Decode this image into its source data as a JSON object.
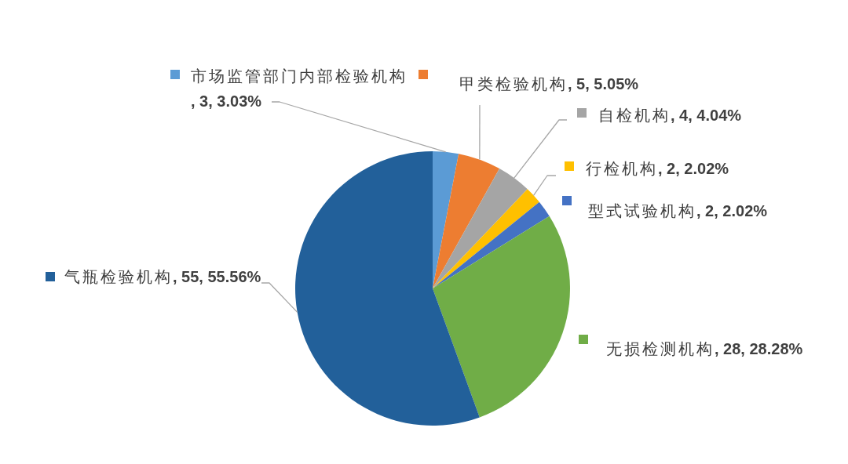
{
  "chart_data": {
    "type": "pie",
    "categories": [
      "市场监管部门内部检验机构",
      "甲类检验机构",
      "自检机构",
      "行检机构",
      "型式试验机构",
      "无损检测机构",
      "气瓶检验机构"
    ],
    "values": [
      3,
      5,
      4,
      2,
      2,
      28,
      55
    ],
    "colors": [
      "#5b9bd5",
      "#ed7d31",
      "#a5a5a5",
      "#ffc000",
      "#4472c4",
      "#70ad47",
      "#22609a"
    ],
    "value_labels": [
      ", 3, 3.03%",
      ", 5, 5.05%",
      ", 4, 4.04%",
      ", 2, 2.02%",
      ", 2, 2.02%",
      ", 28, 28.28%",
      ", 55, 55.56%"
    ],
    "legend": "top left"
  }
}
